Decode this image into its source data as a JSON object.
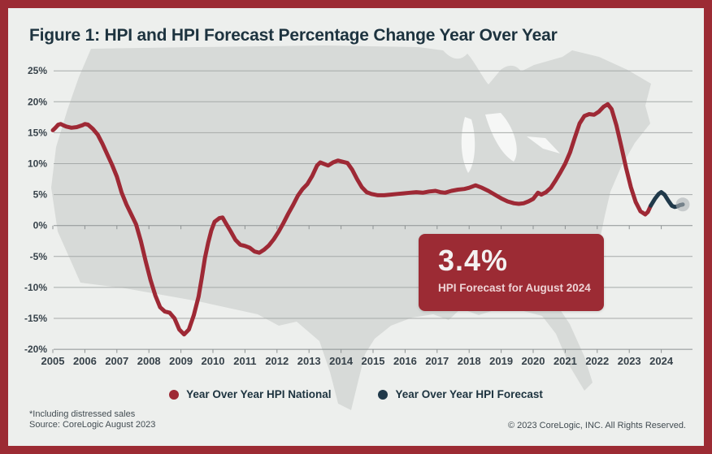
{
  "title": "Figure 1: HPI and HPI Forecast Percentage Change Year Over Year",
  "callout": {
    "value": "3.4%",
    "label": "HPI Forecast for August 2024"
  },
  "legend": {
    "items": [
      {
        "label": "Year Over Year HPI National",
        "color": "#9e2935"
      },
      {
        "label": "Year Over Year HPI Forecast",
        "color": "#20394a"
      }
    ]
  },
  "footer": {
    "footnote_line1": "*Including distressed sales",
    "footnote_line2": "Source: CoreLogic August 2023",
    "copyright": "© 2023 CoreLogic, INC. All Rights Reserved."
  },
  "colors": {
    "frame": "#9c2b34",
    "background": "#edefed",
    "map": "#d7dad8",
    "lakes": "#f6f7f6",
    "gridline": "#a6aaa9",
    "axis": "#8d9293",
    "national_line": "#9e2935",
    "forecast_line": "#20394a",
    "endpoint_marker": "#aeb3b5",
    "callout_bg": "#9c2b34",
    "text_dark": "#1d333f"
  },
  "chart_data": {
    "type": "line",
    "title": "HPI and HPI Forecast Percentage Change Year Over Year",
    "xlabel": "",
    "ylabel": "",
    "grid": true,
    "legend_position": "bottom",
    "x_axis": {
      "range": [
        2005,
        2024.8
      ],
      "tick_values": [
        2005,
        2006,
        2007,
        2008,
        2009,
        2010,
        2011,
        2012,
        2013,
        2014,
        2015,
        2016,
        2017,
        2018,
        2019,
        2020,
        2021,
        2022,
        2023,
        2024
      ],
      "tick_labels": [
        "2005",
        "2006",
        "2007",
        "2008",
        "2009",
        "2010",
        "2011",
        "2012",
        "2013",
        "2014",
        "2015",
        "2016",
        "2017",
        "2018",
        "2019",
        "2020",
        "2021",
        "2022",
        "2023",
        "2024"
      ]
    },
    "y_axis": {
      "unit": "%",
      "range": [
        -20,
        25
      ],
      "tick_values": [
        25,
        20,
        15,
        10,
        5,
        0,
        -5,
        -10,
        -15,
        -20
      ],
      "tick_labels": [
        "25%",
        "20%",
        "15%",
        "10%",
        "5%",
        "0%",
        "-5%",
        "-10%",
        "-15%",
        "-20%"
      ]
    },
    "series": [
      {
        "name": "Year Over Year HPI National",
        "color": "#9e2935",
        "points": [
          [
            2005.0,
            15.4
          ],
          [
            2005.08,
            15.8
          ],
          [
            2005.17,
            16.3
          ],
          [
            2005.25,
            16.4
          ],
          [
            2005.33,
            16.2
          ],
          [
            2005.42,
            16.0
          ],
          [
            2005.58,
            15.8
          ],
          [
            2005.75,
            15.9
          ],
          [
            2005.92,
            16.2
          ],
          [
            2006.0,
            16.4
          ],
          [
            2006.1,
            16.3
          ],
          [
            2006.25,
            15.6
          ],
          [
            2006.4,
            14.7
          ],
          [
            2006.55,
            13.2
          ],
          [
            2006.7,
            11.5
          ],
          [
            2006.85,
            9.8
          ],
          [
            2007.0,
            7.9
          ],
          [
            2007.15,
            5.3
          ],
          [
            2007.3,
            3.4
          ],
          [
            2007.45,
            1.8
          ],
          [
            2007.6,
            0.2
          ],
          [
            2007.75,
            -2.5
          ],
          [
            2007.9,
            -5.8
          ],
          [
            2008.05,
            -8.8
          ],
          [
            2008.2,
            -11.3
          ],
          [
            2008.35,
            -13.2
          ],
          [
            2008.5,
            -13.9
          ],
          [
            2008.65,
            -14.1
          ],
          [
            2008.8,
            -15.0
          ],
          [
            2008.95,
            -16.8
          ],
          [
            2009.1,
            -17.6
          ],
          [
            2009.25,
            -16.8
          ],
          [
            2009.4,
            -14.5
          ],
          [
            2009.55,
            -11.5
          ],
          [
            2009.65,
            -8.5
          ],
          [
            2009.75,
            -5.2
          ],
          [
            2009.85,
            -2.8
          ],
          [
            2009.95,
            -0.8
          ],
          [
            2010.05,
            0.6
          ],
          [
            2010.2,
            1.2
          ],
          [
            2010.3,
            1.3
          ],
          [
            2010.4,
            0.4
          ],
          [
            2010.55,
            -0.9
          ],
          [
            2010.7,
            -2.3
          ],
          [
            2010.85,
            -3.1
          ],
          [
            2011.0,
            -3.3
          ],
          [
            2011.15,
            -3.6
          ],
          [
            2011.3,
            -4.2
          ],
          [
            2011.45,
            -4.4
          ],
          [
            2011.6,
            -3.9
          ],
          [
            2011.75,
            -3.2
          ],
          [
            2011.9,
            -2.2
          ],
          [
            2012.05,
            -1.0
          ],
          [
            2012.2,
            0.4
          ],
          [
            2012.35,
            1.9
          ],
          [
            2012.5,
            3.3
          ],
          [
            2012.65,
            4.8
          ],
          [
            2012.8,
            5.9
          ],
          [
            2012.95,
            6.7
          ],
          [
            2013.1,
            8.0
          ],
          [
            2013.25,
            9.7
          ],
          [
            2013.35,
            10.2
          ],
          [
            2013.5,
            9.9
          ],
          [
            2013.6,
            9.7
          ],
          [
            2013.75,
            10.2
          ],
          [
            2013.9,
            10.5
          ],
          [
            2014.05,
            10.3
          ],
          [
            2014.2,
            10.1
          ],
          [
            2014.35,
            9.0
          ],
          [
            2014.5,
            7.5
          ],
          [
            2014.65,
            6.2
          ],
          [
            2014.8,
            5.4
          ],
          [
            2014.95,
            5.1
          ],
          [
            2015.15,
            4.9
          ],
          [
            2015.35,
            4.9
          ],
          [
            2015.55,
            5.0
          ],
          [
            2015.75,
            5.1
          ],
          [
            2015.95,
            5.2
          ],
          [
            2016.15,
            5.3
          ],
          [
            2016.35,
            5.4
          ],
          [
            2016.55,
            5.3
          ],
          [
            2016.75,
            5.5
          ],
          [
            2016.95,
            5.6
          ],
          [
            2017.1,
            5.4
          ],
          [
            2017.25,
            5.3
          ],
          [
            2017.45,
            5.6
          ],
          [
            2017.65,
            5.8
          ],
          [
            2017.85,
            5.9
          ],
          [
            2018.0,
            6.1
          ],
          [
            2018.2,
            6.5
          ],
          [
            2018.4,
            6.1
          ],
          [
            2018.6,
            5.6
          ],
          [
            2018.8,
            5.0
          ],
          [
            2019.0,
            4.4
          ],
          [
            2019.2,
            3.9
          ],
          [
            2019.4,
            3.6
          ],
          [
            2019.55,
            3.5
          ],
          [
            2019.7,
            3.6
          ],
          [
            2019.85,
            3.9
          ],
          [
            2020.0,
            4.3
          ],
          [
            2020.15,
            5.3
          ],
          [
            2020.25,
            5.0
          ],
          [
            2020.4,
            5.4
          ],
          [
            2020.55,
            6.1
          ],
          [
            2020.7,
            7.3
          ],
          [
            2020.85,
            8.6
          ],
          [
            2021.0,
            10.0
          ],
          [
            2021.15,
            11.8
          ],
          [
            2021.3,
            14.2
          ],
          [
            2021.45,
            16.5
          ],
          [
            2021.6,
            17.7
          ],
          [
            2021.75,
            18.0
          ],
          [
            2021.9,
            17.9
          ],
          [
            2022.05,
            18.4
          ],
          [
            2022.2,
            19.2
          ],
          [
            2022.33,
            19.6
          ],
          [
            2022.45,
            18.8
          ],
          [
            2022.6,
            16.2
          ],
          [
            2022.75,
            12.8
          ],
          [
            2022.9,
            9.3
          ],
          [
            2023.05,
            6.2
          ],
          [
            2023.2,
            3.8
          ],
          [
            2023.35,
            2.3
          ],
          [
            2023.5,
            1.8
          ],
          [
            2023.58,
            2.2
          ],
          [
            2023.67,
            3.2
          ]
        ]
      },
      {
        "name": "Year Over Year HPI Forecast",
        "color": "#20394a",
        "end_marker": true,
        "points": [
          [
            2023.67,
            3.2
          ],
          [
            2023.8,
            4.3
          ],
          [
            2023.92,
            5.1
          ],
          [
            2024.0,
            5.4
          ],
          [
            2024.1,
            5.0
          ],
          [
            2024.22,
            4.0
          ],
          [
            2024.33,
            3.2
          ],
          [
            2024.42,
            3.0
          ],
          [
            2024.5,
            3.1
          ],
          [
            2024.58,
            3.3
          ],
          [
            2024.67,
            3.4
          ]
        ]
      }
    ],
    "annotation": {
      "value": "3.4%",
      "label": "HPI Forecast for August 2024",
      "x": 2024.67,
      "y": 3.4
    }
  }
}
